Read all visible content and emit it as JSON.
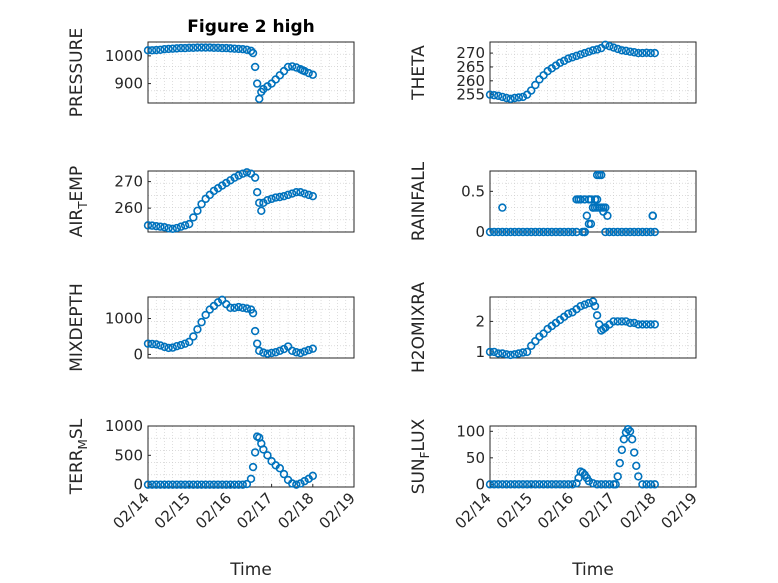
{
  "chart_data": [
    {
      "type": "scatter",
      "title": "Figure 2 high",
      "ylabel": "PRESSURE",
      "xlabel": "",
      "ylim": [
        830,
        1050
      ],
      "yticks": [
        900,
        1000
      ],
      "ytick_labels": [
        "900",
        "1000"
      ],
      "xlim": [
        0,
        5
      ],
      "xtick_labels": [],
      "grid": true,
      "series": [
        {
          "x": [
            0,
            0.1,
            0.2,
            0.3,
            0.4,
            0.5,
            0.6,
            0.7,
            0.8,
            0.9,
            1.0,
            1.1,
            1.2,
            1.3,
            1.4,
            1.5,
            1.6,
            1.7,
            1.8,
            1.9,
            2.0,
            2.1,
            2.2,
            2.3,
            2.4,
            2.5,
            2.55,
            2.6,
            2.65,
            2.7,
            2.75,
            2.8,
            2.9,
            3.0,
            3.1,
            3.2,
            3.3,
            3.4,
            3.5,
            3.6,
            3.7,
            3.75,
            3.8,
            3.9,
            4.0
          ],
          "y": [
            1020,
            1020,
            1021,
            1022,
            1024,
            1025,
            1026,
            1027,
            1028,
            1028,
            1029,
            1029,
            1030,
            1030,
            1030,
            1030,
            1029,
            1029,
            1028,
            1028,
            1027,
            1026,
            1025,
            1024,
            1022,
            1018,
            1010,
            960,
            900,
            845,
            870,
            880,
            890,
            900,
            915,
            930,
            945,
            960,
            962,
            958,
            952,
            948,
            945,
            938,
            932
          ]
        }
      ]
    },
    {
      "type": "scatter",
      "ylabel": "THETA",
      "xlabel": "",
      "ylim": [
        252,
        274
      ],
      "yticks": [
        255,
        260,
        265,
        270
      ],
      "ytick_labels": [
        "255",
        "260",
        "265",
        "270"
      ],
      "xlim": [
        0,
        5
      ],
      "xtick_labels": [],
      "grid": true,
      "series": [
        {
          "x": [
            0,
            0.1,
            0.2,
            0.3,
            0.4,
            0.5,
            0.6,
            0.7,
            0.8,
            0.9,
            1.0,
            1.1,
            1.2,
            1.3,
            1.4,
            1.5,
            1.6,
            1.7,
            1.8,
            1.9,
            2.0,
            2.1,
            2.2,
            2.3,
            2.4,
            2.5,
            2.6,
            2.7,
            2.8,
            2.9,
            3.0,
            3.1,
            3.2,
            3.3,
            3.4,
            3.5,
            3.6,
            3.7,
            3.8,
            3.9,
            4.0
          ],
          "y": [
            255,
            254.8,
            254.6,
            254.2,
            253.8,
            253.5,
            253.8,
            254.0,
            254.2,
            255,
            256.5,
            258.5,
            260.5,
            262,
            263.5,
            264.5,
            265.5,
            266.5,
            267.2,
            268,
            268.5,
            269,
            269.5,
            270,
            270.5,
            271,
            271.3,
            271.8,
            273,
            272.5,
            272,
            271.5,
            271,
            270.8,
            270.5,
            270.3,
            270,
            270,
            270.1,
            270,
            270
          ]
        }
      ]
    },
    {
      "type": "scatter",
      "ylabel": "AIR_TEMP",
      "ylabel_parts": [
        "AIR",
        "T",
        "EMP"
      ],
      "xlabel": "",
      "ylim": [
        251,
        274
      ],
      "yticks": [
        260,
        270
      ],
      "ytick_labels": [
        "260",
        "270"
      ],
      "xlim": [
        0,
        5
      ],
      "xtick_labels": [],
      "grid": true,
      "series": [
        {
          "x": [
            0,
            0.1,
            0.2,
            0.3,
            0.4,
            0.5,
            0.6,
            0.7,
            0.8,
            0.9,
            1.0,
            1.1,
            1.2,
            1.3,
            1.4,
            1.5,
            1.6,
            1.7,
            1.8,
            1.9,
            2.0,
            2.1,
            2.2,
            2.3,
            2.4,
            2.5,
            2.6,
            2.65,
            2.7,
            2.75,
            2.8,
            2.9,
            3.0,
            3.1,
            3.2,
            3.3,
            3.4,
            3.5,
            3.6,
            3.7,
            3.8,
            3.9,
            4.0
          ],
          "y": [
            253.5,
            253.4,
            253.2,
            253,
            252.8,
            252.4,
            252.2,
            252.5,
            253,
            253.5,
            254,
            256.5,
            259,
            261.5,
            263.5,
            265,
            266.5,
            267.5,
            268.5,
            269.5,
            270.5,
            271.5,
            272.3,
            273,
            273.5,
            273,
            271.5,
            266,
            262,
            259,
            262,
            263,
            263.5,
            264,
            264.2,
            264.5,
            265,
            265.5,
            266,
            266,
            265.5,
            265,
            264.5
          ]
        }
      ]
    },
    {
      "type": "scatter",
      "ylabel": "RAINFALL",
      "xlabel": "",
      "ylim": [
        0,
        0.75
      ],
      "yticks": [
        0,
        0.5
      ],
      "ytick_labels": [
        "0",
        "0.5"
      ],
      "xlim": [
        0,
        5
      ],
      "xtick_labels": [],
      "grid": true,
      "series": [
        {
          "x": [
            0,
            0.1,
            0.2,
            0.3,
            0.4,
            0.5,
            0.6,
            0.7,
            0.8,
            0.9,
            1.0,
            1.1,
            1.2,
            1.3,
            1.4,
            1.5,
            1.6,
            1.7,
            1.8,
            1.9,
            2.0,
            2.1,
            2.15,
            2.2,
            2.25,
            2.3,
            2.35,
            2.4,
            2.45,
            2.5,
            2.55,
            2.6,
            2.65,
            2.7,
            2.75,
            2.8,
            2.85,
            2.9,
            3.0,
            3.1,
            3.2,
            3.3,
            3.4,
            3.5,
            3.6,
            3.7,
            3.8,
            3.9,
            3.95,
            4.0,
            0.3,
            2.1,
            2.2,
            2.3,
            2.4,
            2.45,
            2.5,
            2.55,
            2.6,
            2.65,
            2.7,
            2.75,
            2.8,
            2.3,
            2.6,
            3.95
          ],
          "y": [
            0,
            0,
            0,
            0,
            0,
            0,
            0,
            0,
            0,
            0,
            0,
            0,
            0,
            0,
            0,
            0,
            0,
            0,
            0,
            0,
            0,
            0,
            0.4,
            0.4,
            0,
            0.4,
            0.2,
            0.1,
            0.4,
            0.3,
            0.4,
            0.7,
            0.3,
            0.7,
            0.3,
            0.3,
            0.2,
            0,
            0,
            0,
            0,
            0,
            0,
            0,
            0,
            0,
            0,
            0,
            0.2,
            0,
            0.3,
            0.4,
            0.4,
            0,
            0.4,
            0.1,
            0.3,
            0.3,
            0.3,
            0.7,
            0.3,
            0.25,
            0,
            0,
            0.4,
            0.2
          ]
        }
      ]
    },
    {
      "type": "scatter",
      "ylabel": "MIXDEPTH",
      "xlabel": "",
      "ylim": [
        -100,
        1600
      ],
      "yticks": [
        0,
        1000
      ],
      "ytick_labels": [
        "0",
        "1000"
      ],
      "xlim": [
        0,
        5
      ],
      "xtick_labels": [],
      "grid": true,
      "series": [
        {
          "x": [
            0,
            0.1,
            0.2,
            0.3,
            0.4,
            0.5,
            0.6,
            0.7,
            0.8,
            0.9,
            1.0,
            1.1,
            1.2,
            1.3,
            1.4,
            1.5,
            1.6,
            1.7,
            1.8,
            1.9,
            2.0,
            2.1,
            2.2,
            2.3,
            2.4,
            2.5,
            2.55,
            2.6,
            2.65,
            2.7,
            2.8,
            2.9,
            3.0,
            3.1,
            3.2,
            3.3,
            3.4,
            3.5,
            3.6,
            3.7,
            3.8,
            3.9,
            4.0
          ],
          "y": [
            300,
            290,
            280,
            250,
            210,
            180,
            190,
            230,
            260,
            300,
            350,
            500,
            700,
            900,
            1100,
            1250,
            1350,
            1450,
            1520,
            1400,
            1300,
            1300,
            1320,
            1300,
            1280,
            1250,
            1150,
            650,
            300,
            100,
            50,
            20,
            40,
            60,
            100,
            150,
            220,
            100,
            60,
            40,
            80,
            120,
            160
          ]
        }
      ]
    },
    {
      "type": "scatter",
      "ylabel": "H2OMIXRA",
      "xlabel": "",
      "ylim": [
        0.8,
        2.8
      ],
      "yticks": [
        1,
        2
      ],
      "ytick_labels": [
        "1",
        "2"
      ],
      "xlim": [
        0,
        5
      ],
      "xtick_labels": [],
      "grid": true,
      "series": [
        {
          "x": [
            0,
            0.1,
            0.2,
            0.3,
            0.4,
            0.5,
            0.6,
            0.7,
            0.8,
            0.9,
            1.0,
            1.1,
            1.2,
            1.3,
            1.4,
            1.5,
            1.6,
            1.7,
            1.8,
            1.9,
            2.0,
            2.1,
            2.2,
            2.3,
            2.4,
            2.5,
            2.55,
            2.6,
            2.65,
            2.7,
            2.75,
            2.8,
            2.9,
            3.0,
            3.1,
            3.2,
            3.3,
            3.4,
            3.5,
            3.6,
            3.7,
            3.8,
            3.9,
            4.0
          ],
          "y": [
            1.0,
            1.0,
            0.95,
            0.95,
            0.92,
            0.9,
            0.92,
            0.95,
            0.98,
            1.0,
            1.2,
            1.35,
            1.5,
            1.6,
            1.75,
            1.85,
            1.95,
            2.05,
            2.15,
            2.25,
            2.3,
            2.4,
            2.5,
            2.55,
            2.6,
            2.65,
            2.5,
            2.2,
            1.9,
            1.7,
            1.75,
            1.8,
            1.9,
            2.0,
            2.0,
            2.0,
            2.0,
            1.95,
            1.95,
            1.9,
            1.9,
            1.9,
            1.9,
            1.9
          ]
        }
      ]
    },
    {
      "type": "scatter",
      "ylabel": "TERR_MSL",
      "ylabel_parts": [
        "TERR",
        "M",
        "SL"
      ],
      "xlabel": "Time",
      "ylim": [
        -40,
        1000
      ],
      "yticks": [
        0,
        500,
        1000
      ],
      "ytick_labels": [
        "0",
        "500",
        "1000"
      ],
      "xlim": [
        0,
        5
      ],
      "xticks": [
        0,
        1,
        2,
        3,
        4,
        5
      ],
      "xtick_labels": [
        "02/14",
        "02/15",
        "02/16",
        "02/17",
        "02/18",
        "02/19"
      ],
      "grid": true,
      "series": [
        {
          "x": [
            0,
            0.1,
            0.2,
            0.3,
            0.4,
            0.5,
            0.6,
            0.7,
            0.8,
            0.9,
            1.0,
            1.1,
            1.2,
            1.3,
            1.4,
            1.5,
            1.6,
            1.7,
            1.8,
            1.9,
            2.0,
            2.1,
            2.2,
            2.3,
            2.4,
            2.5,
            2.55,
            2.6,
            2.65,
            2.7,
            2.75,
            2.8,
            2.9,
            3.0,
            3.1,
            3.2,
            3.3,
            3.4,
            3.5,
            3.6,
            3.7,
            3.8,
            3.9,
            4.0
          ],
          "y": [
            0,
            0,
            0,
            0,
            0,
            0,
            0,
            0,
            0,
            0,
            0,
            0,
            0,
            0,
            0,
            0,
            0,
            0,
            0,
            0,
            0,
            0,
            0,
            0,
            10,
            100,
            300,
            550,
            820,
            800,
            700,
            600,
            500,
            400,
            330,
            280,
            180,
            80,
            20,
            0,
            20,
            60,
            100,
            150
          ]
        }
      ]
    },
    {
      "type": "scatter",
      "ylabel": "SUN_FLUX",
      "ylabel_parts": [
        "SUN",
        "F",
        "LUX"
      ],
      "xlabel": "Time",
      "ylim": [
        -5,
        110
      ],
      "yticks": [
        0,
        50,
        100
      ],
      "ytick_labels": [
        "0",
        "50",
        "100"
      ],
      "xlim": [
        0,
        5
      ],
      "xticks": [
        0,
        1,
        2,
        3,
        4,
        5
      ],
      "xtick_labels": [
        "02/14",
        "02/15",
        "02/16",
        "02/17",
        "02/18",
        "02/19"
      ],
      "grid": true,
      "series": [
        {
          "x": [
            0,
            0.1,
            0.2,
            0.3,
            0.4,
            0.5,
            0.6,
            0.7,
            0.8,
            0.9,
            1.0,
            1.1,
            1.2,
            1.3,
            1.4,
            1.5,
            1.6,
            1.7,
            1.8,
            1.9,
            2.0,
            2.1,
            2.15,
            2.2,
            2.25,
            2.3,
            2.35,
            2.4,
            2.5,
            2.6,
            2.7,
            2.8,
            2.9,
            3.0,
            3.05,
            3.1,
            3.15,
            3.2,
            3.25,
            3.3,
            3.35,
            3.4,
            3.45,
            3.5,
            3.55,
            3.6,
            3.7,
            3.8,
            3.9,
            4.0
          ],
          "y": [
            0,
            0,
            0,
            0,
            0,
            0,
            0,
            0,
            0,
            0,
            0,
            0,
            0,
            0,
            0,
            0,
            0,
            0,
            0,
            0,
            0,
            2,
            12,
            24,
            22,
            18,
            12,
            6,
            2,
            0,
            0,
            0,
            0,
            0,
            0,
            15,
            40,
            65,
            85,
            98,
            104,
            100,
            85,
            60,
            35,
            15,
            0,
            0,
            0,
            0
          ]
        }
      ]
    }
  ]
}
